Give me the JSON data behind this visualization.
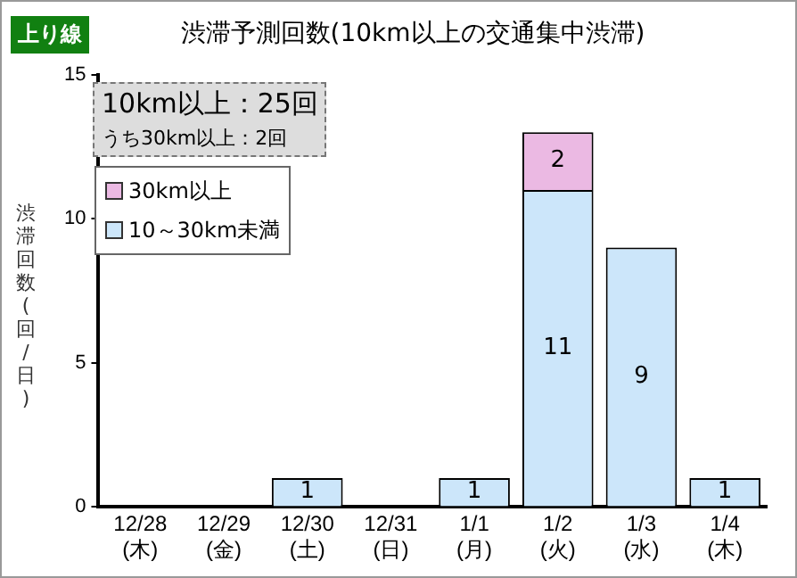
{
  "chart_data": {
    "type": "bar",
    "title": "渋滞予測回数(10km以上の交通集中渋滞)",
    "ylabel": "渋滞回数(回/日)",
    "categories": [
      "12/28\n(木)",
      "12/29\n(金)",
      "12/30\n(土)",
      "12/31\n(日)",
      "1/1\n(月)",
      "1/2\n(火)",
      "1/3\n(水)",
      "1/4\n(木)"
    ],
    "series": [
      {
        "name": "10～30km未満",
        "color": "#cce6fa",
        "values": [
          0,
          0,
          1,
          0,
          1,
          11,
          9,
          1
        ],
        "value_labels": [
          null,
          null,
          "1",
          null,
          "1",
          "11",
          "9",
          "1"
        ]
      },
      {
        "name": "30km以上",
        "color": "#ebb9e3",
        "values": [
          0,
          0,
          0,
          0,
          0,
          2,
          0,
          0
        ],
        "value_labels": [
          null,
          null,
          null,
          null,
          null,
          "2",
          null,
          null
        ]
      }
    ],
    "stacked": true,
    "ylim": [
      0,
      15
    ],
    "yticks": [
      0,
      5,
      10,
      15
    ],
    "grid": false,
    "legend": "top left",
    "annotations": [
      "上り線",
      "10km以上：25回",
      "うち30km以上：2回"
    ]
  }
}
